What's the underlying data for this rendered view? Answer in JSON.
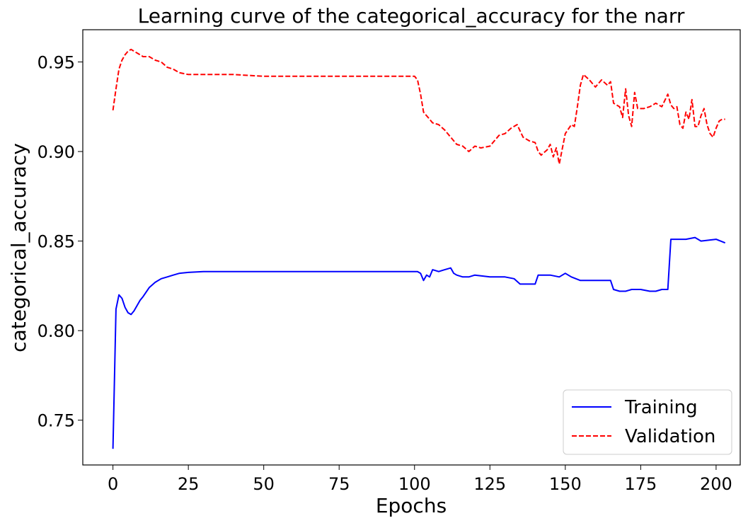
{
  "chart_data": {
    "type": "line",
    "title": "Learning curve of the categorical_accuracy for the narr",
    "xlabel": "Epochs",
    "ylabel": "categorical_accuracy",
    "xlim": [
      -10,
      208
    ],
    "ylim": [
      0.725,
      0.968
    ],
    "xticks": [
      0,
      25,
      50,
      75,
      100,
      125,
      150,
      175,
      200
    ],
    "yticks": [
      0.75,
      0.8,
      0.85,
      0.9,
      0.95
    ],
    "ytick_labels": [
      "0.75",
      "0.80",
      "0.85",
      "0.90",
      "0.95"
    ],
    "grid": false,
    "legend_position": "lower-right",
    "series": [
      {
        "name": "Training",
        "color": "#0000ff",
        "style": "solid",
        "x": [
          0,
          1,
          2,
          3,
          4,
          5,
          6,
          7,
          8,
          9,
          10,
          12,
          14,
          16,
          18,
          20,
          22,
          25,
          30,
          40,
          50,
          60,
          70,
          80,
          90,
          100,
          101,
          102,
          103,
          104,
          105,
          106,
          108,
          110,
          112,
          113,
          114,
          116,
          118,
          120,
          125,
          130,
          133,
          135,
          140,
          141,
          145,
          148,
          150,
          152,
          155,
          160,
          165,
          166,
          168,
          170,
          172,
          175,
          178,
          180,
          182,
          184,
          185,
          186,
          190,
          193,
          195,
          200,
          203
        ],
        "y": [
          0.734,
          0.812,
          0.82,
          0.818,
          0.813,
          0.81,
          0.809,
          0.811,
          0.814,
          0.817,
          0.819,
          0.824,
          0.827,
          0.829,
          0.83,
          0.831,
          0.832,
          0.8325,
          0.833,
          0.833,
          0.833,
          0.833,
          0.833,
          0.833,
          0.833,
          0.833,
          0.833,
          0.832,
          0.828,
          0.831,
          0.83,
          0.834,
          0.833,
          0.834,
          0.835,
          0.832,
          0.831,
          0.83,
          0.83,
          0.831,
          0.83,
          0.83,
          0.829,
          0.826,
          0.826,
          0.831,
          0.831,
          0.83,
          0.832,
          0.83,
          0.828,
          0.828,
          0.828,
          0.823,
          0.822,
          0.822,
          0.823,
          0.823,
          0.822,
          0.822,
          0.823,
          0.823,
          0.851,
          0.851,
          0.851,
          0.852,
          0.85,
          0.851,
          0.849
        ]
      },
      {
        "name": "Validation",
        "color": "#ff0000",
        "style": "dashed",
        "x": [
          0,
          1,
          2,
          3,
          4,
          5,
          6,
          7,
          8,
          9,
          10,
          12,
          14,
          16,
          18,
          20,
          22,
          25,
          30,
          40,
          50,
          60,
          70,
          80,
          90,
          100,
          101,
          102,
          103,
          104,
          105,
          106,
          108,
          110,
          112,
          114,
          116,
          118,
          120,
          122,
          125,
          128,
          130,
          132,
          134,
          136,
          138,
          140,
          141,
          142,
          144,
          145,
          146,
          147,
          148,
          150,
          152,
          153,
          154,
          155,
          156,
          158,
          160,
          162,
          164,
          165,
          166,
          168,
          169,
          170,
          171,
          172,
          173,
          174,
          176,
          178,
          180,
          182,
          184,
          185,
          186,
          187,
          188,
          189,
          190,
          191,
          192,
          193,
          194,
          195,
          196,
          197,
          198,
          199,
          200,
          201,
          202,
          203
        ],
        "y": [
          0.923,
          0.935,
          0.946,
          0.951,
          0.954,
          0.956,
          0.957,
          0.956,
          0.955,
          0.954,
          0.953,
          0.953,
          0.951,
          0.95,
          0.947,
          0.946,
          0.944,
          0.943,
          0.943,
          0.943,
          0.942,
          0.942,
          0.942,
          0.942,
          0.942,
          0.942,
          0.94,
          0.932,
          0.922,
          0.92,
          0.918,
          0.916,
          0.915,
          0.912,
          0.908,
          0.904,
          0.903,
          0.9,
          0.903,
          0.902,
          0.903,
          0.909,
          0.91,
          0.913,
          0.915,
          0.908,
          0.906,
          0.905,
          0.9,
          0.898,
          0.901,
          0.904,
          0.897,
          0.902,
          0.893,
          0.91,
          0.915,
          0.914,
          0.925,
          0.937,
          0.943,
          0.94,
          0.936,
          0.94,
          0.937,
          0.939,
          0.927,
          0.925,
          0.919,
          0.935,
          0.92,
          0.914,
          0.933,
          0.924,
          0.924,
          0.925,
          0.927,
          0.925,
          0.932,
          0.926,
          0.924,
          0.925,
          0.915,
          0.913,
          0.922,
          0.918,
          0.929,
          0.914,
          0.914,
          0.92,
          0.924,
          0.915,
          0.91,
          0.908,
          0.913,
          0.917,
          0.918,
          0.918
        ]
      }
    ]
  }
}
